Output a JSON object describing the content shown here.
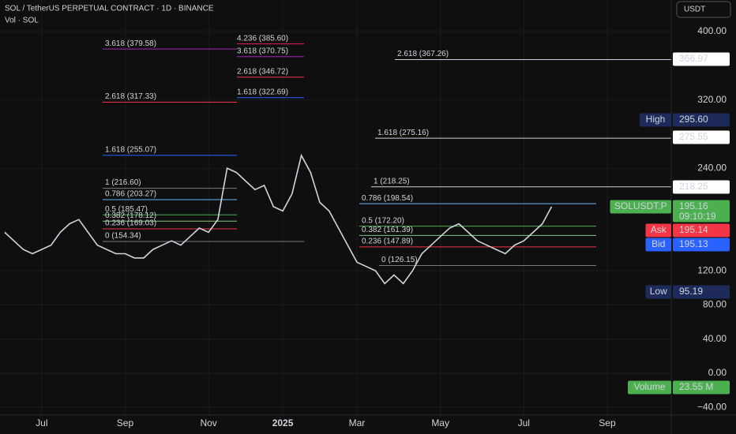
{
  "chart_data": {
    "type": "line",
    "title": "SOL / TetherUS PERPETUAL CONTRACT · 1D · BINANCE",
    "subtitle": "Vol · SOL",
    "currency": "USDT",
    "categories": [
      null,
      null,
      null,
      null,
      "Jul",
      null,
      null,
      null,
      null,
      null,
      null,
      null,
      null,
      "Sep",
      null,
      null,
      null,
      null,
      null,
      null,
      null,
      null,
      "Nov",
      null,
      null,
      null,
      null,
      null,
      null,
      null,
      "2025",
      null,
      null,
      null,
      null,
      null,
      null,
      null,
      "Mar",
      null,
      null,
      null,
      null,
      null,
      null,
      null,
      null,
      "May",
      null,
      null,
      null,
      null,
      null,
      null,
      null,
      null,
      "Jul",
      null,
      null,
      null,
      null,
      null,
      null,
      null,
      null,
      "Sep"
    ],
    "series": [
      {
        "name": "SOLUSDT.P",
        "color": "#d1d4dc",
        "values": [
          165,
          155,
          145,
          140,
          145,
          150,
          165,
          175,
          180,
          165,
          150,
          145,
          140,
          140,
          135,
          135,
          145,
          150,
          155,
          150,
          160,
          170,
          165,
          180,
          240,
          235,
          225,
          215,
          220,
          195,
          190,
          210,
          255,
          235,
          200,
          190,
          170,
          150,
          130,
          125,
          120,
          105,
          115,
          105,
          120,
          140,
          150,
          160,
          170,
          175,
          165,
          155,
          150,
          145,
          140,
          150,
          155,
          165,
          175,
          195,
          null,
          null,
          null,
          null,
          null,
          null
        ]
      }
    ],
    "ylim": [
      -50.8,
      437
    ],
    "yticks": [
      {
        "value": 400,
        "label": "400.00"
      },
      {
        "value": 320,
        "label": "320.00"
      },
      {
        "value": 240,
        "label": "240.00"
      },
      {
        "value": 120,
        "label": "120.00"
      },
      {
        "value": 80,
        "label": "80.00"
      },
      {
        "value": 40,
        "label": "40.00"
      },
      {
        "value": 0,
        "label": "0.00"
      },
      {
        "value": -40,
        "label": "−40.00"
      }
    ],
    "grid": true,
    "fib_levels": [
      {
        "label": "3.618 (379.58)",
        "value": 379.58,
        "color": "#9c27b0"
      },
      {
        "label": "2.618 (317.33)",
        "value": 317.33,
        "color": "#f23645"
      },
      {
        "label": "1.618 (255.07)",
        "value": 255.07,
        "color": "#2962ff"
      },
      {
        "label": "1 (216.60)",
        "value": 216.6,
        "color": "#787b86"
      },
      {
        "label": "0.786 (203.27)",
        "value": 203.27,
        "color": "#64b5f6"
      },
      {
        "label": "0.5 (185.47)",
        "value": 185.47,
        "color": "#4caf50"
      },
      {
        "label": "0.382 (178.12)",
        "value": 178.12,
        "color": "#81c784"
      },
      {
        "label": "0.236 (169.03)",
        "value": 169.03,
        "color": "#f23645"
      },
      {
        "label": "0 (154.34)",
        "value": 154.34,
        "color": "#787b86"
      },
      {
        "label": "4.236 (385.60)",
        "value": 385.6,
        "color": "#e91e63"
      },
      {
        "label": "3.618 (370.75)",
        "value": 370.75,
        "color": "#9c27b0"
      },
      {
        "label": "2.618 (346.72)",
        "value": 346.72,
        "color": "#f23645"
      },
      {
        "label": "1.618 (322.69)",
        "value": 322.69,
        "color": "#2962ff"
      },
      {
        "label": "2.618 (367.26)",
        "value": 367.26,
        "color": "#f23645"
      },
      {
        "label": "1.618 (275.16)",
        "value": 275.16,
        "color": "#2962ff"
      },
      {
        "label": "1 (218.25)",
        "value": 218.25,
        "color": "#787b86"
      },
      {
        "label": "0.786 (198.54)",
        "value": 198.54,
        "color": "#64b5f6"
      },
      {
        "label": "0.5 (172.20)",
        "value": 172.2,
        "color": "#4caf50"
      },
      {
        "label": "0.382 (161.39)",
        "value": 161.39,
        "color": "#81c784"
      },
      {
        "label": "0.236 (147.89)",
        "value": 147.89,
        "color": "#f23645"
      },
      {
        "label": "0 (126.15)",
        "value": 126.15,
        "color": "#787b86"
      }
    ],
    "price_tags": [
      {
        "value": "366.97"
      },
      {
        "label": "High",
        "value": "295.60"
      },
      {
        "value": "275.55"
      },
      {
        "value": "218.25"
      },
      {
        "label": "SOLUSDT.P",
        "value": "195.16",
        "countdown": "09:10:19"
      },
      {
        "label": "Ask",
        "value": "195.14"
      },
      {
        "label": "Bid",
        "value": "195.13"
      },
      {
        "label": "Low",
        "value": "95.19"
      },
      {
        "label": "Volume",
        "value": "23.55 M"
      }
    ]
  }
}
